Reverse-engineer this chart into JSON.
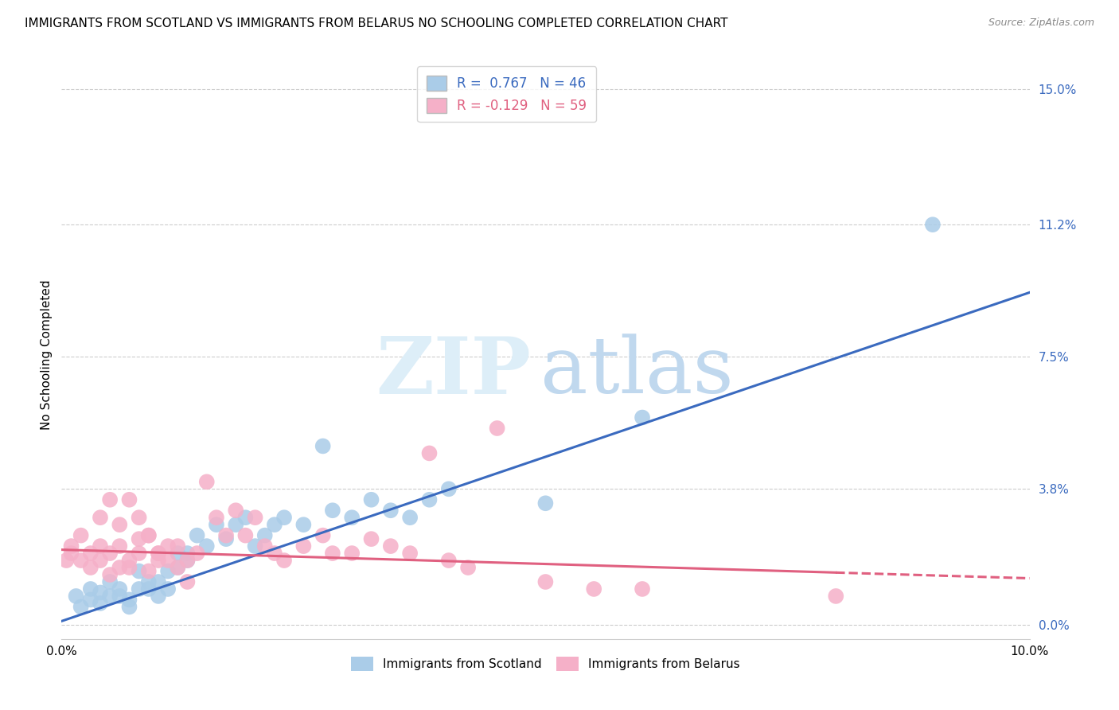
{
  "title": "IMMIGRANTS FROM SCOTLAND VS IMMIGRANTS FROM BELARUS NO SCHOOLING COMPLETED CORRELATION CHART",
  "source": "Source: ZipAtlas.com",
  "ylabel": "No Schooling Completed",
  "legend_r1": "R =  0.767",
  "legend_n1": "N = 46",
  "legend_r2": "R = -0.129",
  "legend_n2": "N = 59",
  "scotland_color": "#aacce8",
  "belarus_color": "#f5b0c8",
  "scotland_line_color": "#3a6abf",
  "belarus_line_color": "#e06080",
  "x_min": 0.0,
  "x_max": 0.1,
  "y_min": -0.004,
  "y_max": 0.155,
  "yticks": [
    0.0,
    0.038,
    0.075,
    0.112,
    0.15
  ],
  "ytick_labels": [
    "0.0%",
    "3.8%",
    "7.5%",
    "11.2%",
    "15.0%"
  ],
  "xticks": [
    0.0,
    0.02,
    0.04,
    0.06,
    0.08,
    0.1
  ],
  "xtick_labels": [
    "0.0%",
    "",
    "",
    "",
    "",
    "10.0%"
  ],
  "scotland_line_x0": 0.0,
  "scotland_line_y0": 0.001,
  "scotland_line_x1": 0.1,
  "scotland_line_y1": 0.093,
  "belarus_line_x0": 0.0,
  "belarus_line_y0": 0.021,
  "belarus_line_x1": 0.1,
  "belarus_line_y1": 0.013,
  "scotland_x": [
    0.0015,
    0.002,
    0.003,
    0.003,
    0.004,
    0.004,
    0.005,
    0.005,
    0.006,
    0.006,
    0.007,
    0.007,
    0.008,
    0.008,
    0.009,
    0.009,
    0.01,
    0.01,
    0.011,
    0.011,
    0.012,
    0.012,
    0.013,
    0.013,
    0.014,
    0.015,
    0.016,
    0.017,
    0.018,
    0.019,
    0.02,
    0.021,
    0.022,
    0.023,
    0.025,
    0.027,
    0.028,
    0.03,
    0.032,
    0.034,
    0.036,
    0.038,
    0.04,
    0.05,
    0.09,
    0.06
  ],
  "scotland_y": [
    0.008,
    0.005,
    0.01,
    0.007,
    0.006,
    0.009,
    0.008,
    0.012,
    0.01,
    0.008,
    0.007,
    0.005,
    0.01,
    0.015,
    0.01,
    0.012,
    0.008,
    0.012,
    0.015,
    0.01,
    0.016,
    0.02,
    0.018,
    0.02,
    0.025,
    0.022,
    0.028,
    0.024,
    0.028,
    0.03,
    0.022,
    0.025,
    0.028,
    0.03,
    0.028,
    0.05,
    0.032,
    0.03,
    0.035,
    0.032,
    0.03,
    0.035,
    0.038,
    0.034,
    0.112,
    0.058
  ],
  "belarus_x": [
    0.0005,
    0.001,
    0.001,
    0.002,
    0.002,
    0.003,
    0.003,
    0.004,
    0.004,
    0.005,
    0.005,
    0.006,
    0.006,
    0.007,
    0.007,
    0.008,
    0.008,
    0.009,
    0.009,
    0.01,
    0.01,
    0.011,
    0.012,
    0.013,
    0.014,
    0.015,
    0.016,
    0.017,
    0.018,
    0.019,
    0.02,
    0.021,
    0.022,
    0.023,
    0.025,
    0.027,
    0.028,
    0.03,
    0.032,
    0.034,
    0.036,
    0.038,
    0.04,
    0.042,
    0.05,
    0.055,
    0.06,
    0.004,
    0.005,
    0.006,
    0.007,
    0.008,
    0.009,
    0.01,
    0.011,
    0.012,
    0.013,
    0.08,
    0.045
  ],
  "belarus_y": [
    0.018,
    0.02,
    0.022,
    0.018,
    0.025,
    0.016,
    0.02,
    0.022,
    0.018,
    0.014,
    0.02,
    0.016,
    0.022,
    0.018,
    0.016,
    0.02,
    0.024,
    0.025,
    0.015,
    0.018,
    0.02,
    0.022,
    0.022,
    0.018,
    0.02,
    0.04,
    0.03,
    0.025,
    0.032,
    0.025,
    0.03,
    0.022,
    0.02,
    0.018,
    0.022,
    0.025,
    0.02,
    0.02,
    0.024,
    0.022,
    0.02,
    0.048,
    0.018,
    0.016,
    0.012,
    0.01,
    0.01,
    0.03,
    0.035,
    0.028,
    0.035,
    0.03,
    0.025,
    0.02,
    0.018,
    0.016,
    0.012,
    0.008,
    0.055
  ],
  "watermark_zip_color": "#ddeef8",
  "watermark_atlas_color": "#c0d8ee",
  "background_color": "#ffffff",
  "grid_color": "#cccccc",
  "title_fontsize": 11,
  "source_fontsize": 9,
  "tick_fontsize": 11,
  "ylabel_fontsize": 11,
  "legend_fontsize": 12
}
